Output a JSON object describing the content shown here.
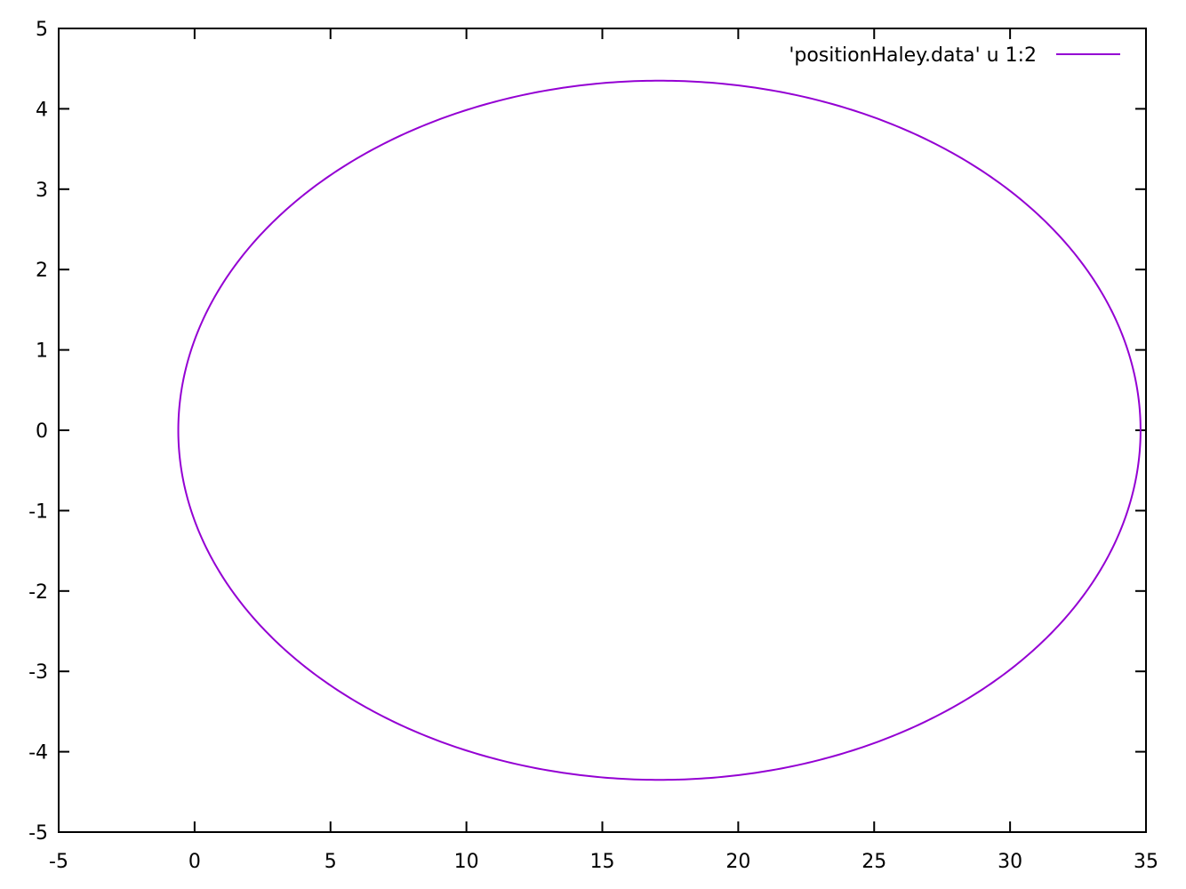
{
  "chart_data": {
    "type": "line",
    "title": "",
    "xlabel": "",
    "ylabel": "",
    "xlim": [
      -5,
      35
    ],
    "ylim": [
      -5,
      5
    ],
    "x_ticks": [
      -5,
      0,
      5,
      10,
      15,
      20,
      25,
      30,
      35
    ],
    "y_ticks": [
      -5,
      -4,
      -3,
      -2,
      -1,
      0,
      1,
      2,
      3,
      4,
      5
    ],
    "x_tick_labels": [
      "-5",
      "0",
      "5",
      "10",
      "15",
      "20",
      "25",
      "30",
      "35"
    ],
    "y_tick_labels": [
      "-5",
      "-4",
      "-3",
      "-2",
      "-1",
      "0",
      "1",
      "2",
      "3",
      "4",
      "5"
    ],
    "grid": false,
    "legend_position": "top-right",
    "series": [
      {
        "name": "'positionHaley.data' u 1:2",
        "color": "#9400d3",
        "shape": "ellipse",
        "center": [
          17.1,
          0
        ],
        "semi_axis_x": 17.7,
        "semi_axis_y": 4.35,
        "x_extent": [
          -0.6,
          34.8
        ],
        "y_extent": [
          -4.35,
          4.35
        ]
      }
    ]
  }
}
